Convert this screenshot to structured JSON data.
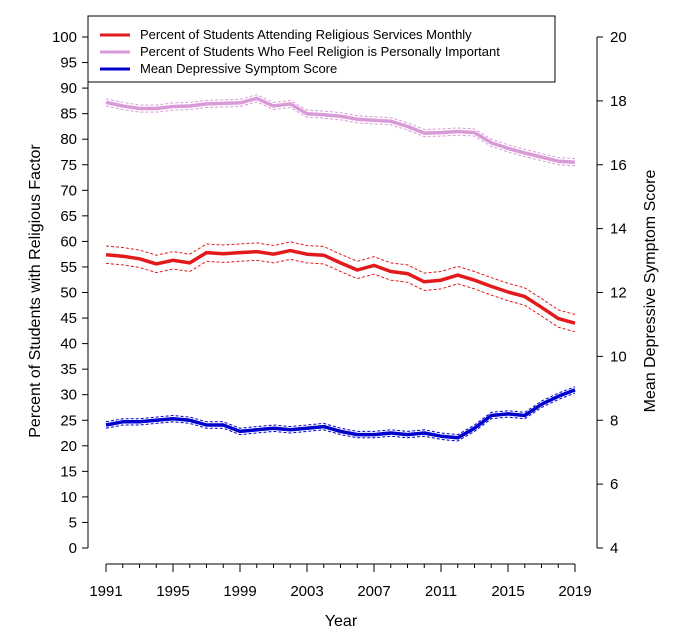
{
  "chart_data": {
    "type": "line",
    "x": [
      1991,
      1992,
      1993,
      1994,
      1995,
      1996,
      1997,
      1998,
      1999,
      2000,
      2001,
      2002,
      2003,
      2004,
      2005,
      2006,
      2007,
      2008,
      2009,
      2010,
      2011,
      2012,
      2013,
      2014,
      2015,
      2016,
      2017,
      2018,
      2019
    ],
    "xlabel": "Year",
    "x_ticks": [
      1991,
      1995,
      1999,
      2003,
      2007,
      2011,
      2015,
      2019
    ],
    "xlim": [
      1991,
      2019
    ],
    "ylabel": "Percent of Students with Religious Factor",
    "ylim": [
      0,
      100
    ],
    "y_ticks": [
      0,
      5,
      10,
      15,
      20,
      25,
      30,
      35,
      40,
      45,
      50,
      55,
      60,
      65,
      70,
      75,
      80,
      85,
      90,
      95,
      100
    ],
    "y2label": "Mean Depressive Symptom Score",
    "y2lim": [
      4,
      20
    ],
    "y2_ticks": [
      4,
      6,
      8,
      10,
      12,
      14,
      16,
      18,
      20
    ],
    "legend_position": "top",
    "grid": false,
    "series": [
      {
        "name": "Percent of Students Attending Religious Services Monthly",
        "axis": "left",
        "color": "#e31a1c",
        "ci_color": "#e31a1c",
        "values": [
          57.4,
          57.1,
          56.6,
          55.6,
          56.3,
          55.8,
          57.8,
          57.6,
          57.8,
          58.0,
          57.5,
          58.2,
          57.5,
          57.3,
          55.8,
          54.4,
          55.3,
          54.1,
          53.7,
          52.1,
          52.4,
          53.4,
          52.4,
          51.2,
          50.1,
          49.2,
          47.1,
          44.9,
          44.0
        ],
        "lower": [
          55.7,
          55.4,
          54.9,
          53.9,
          54.6,
          54.1,
          56.1,
          55.9,
          56.1,
          56.3,
          55.8,
          56.5,
          55.8,
          55.6,
          54.1,
          52.7,
          53.6,
          52.4,
          52.0,
          50.4,
          50.7,
          51.7,
          50.7,
          49.5,
          48.4,
          47.5,
          45.4,
          43.2,
          42.3
        ],
        "upper": [
          59.1,
          58.8,
          58.3,
          57.3,
          58.0,
          57.5,
          59.5,
          59.3,
          59.5,
          59.7,
          59.2,
          59.9,
          59.2,
          59.0,
          57.5,
          56.1,
          57.0,
          55.8,
          55.4,
          53.8,
          54.1,
          55.1,
          54.1,
          52.9,
          51.8,
          50.9,
          48.8,
          46.6,
          45.7
        ]
      },
      {
        "name": "Percent of Students Who Feel Religion is Personally Important",
        "axis": "left",
        "color": "#d99ad8",
        "ci_color": "#d99ad8",
        "values": [
          87.2,
          86.5,
          86.0,
          86.0,
          86.4,
          86.5,
          86.9,
          87.0,
          87.1,
          88.0,
          86.5,
          86.9,
          85.0,
          84.8,
          84.5,
          83.9,
          83.7,
          83.5,
          82.5,
          81.2,
          81.3,
          81.5,
          81.3,
          79.3,
          78.2,
          77.3,
          76.5,
          75.7,
          75.5
        ],
        "lower": [
          86.5,
          85.8,
          85.3,
          85.3,
          85.7,
          85.8,
          86.2,
          86.3,
          86.4,
          87.3,
          85.8,
          86.2,
          84.3,
          84.1,
          83.8,
          83.2,
          83.0,
          82.8,
          81.8,
          80.5,
          80.6,
          80.8,
          80.6,
          78.6,
          77.5,
          76.6,
          75.8,
          75.0,
          74.8
        ],
        "upper": [
          87.9,
          87.2,
          86.7,
          86.7,
          87.1,
          87.2,
          87.6,
          87.7,
          87.8,
          88.7,
          87.2,
          87.6,
          85.7,
          85.5,
          85.2,
          84.6,
          84.4,
          84.2,
          83.2,
          81.9,
          82.0,
          82.2,
          82.0,
          80.0,
          78.9,
          78.0,
          77.2,
          76.4,
          76.2
        ]
      },
      {
        "name": "Mean Depressive Symptom Score",
        "axis": "right",
        "color": "#0000cc",
        "ci_color": "#0000cc",
        "values": [
          7.85,
          7.95,
          7.95,
          8.0,
          8.05,
          8.0,
          7.85,
          7.85,
          7.65,
          7.7,
          7.75,
          7.7,
          7.75,
          7.8,
          7.65,
          7.55,
          7.55,
          7.6,
          7.55,
          7.6,
          7.5,
          7.45,
          7.75,
          8.15,
          8.2,
          8.15,
          8.5,
          8.75,
          8.95
        ],
        "lower": [
          7.75,
          7.85,
          7.85,
          7.9,
          7.95,
          7.9,
          7.75,
          7.75,
          7.55,
          7.6,
          7.65,
          7.6,
          7.65,
          7.7,
          7.55,
          7.45,
          7.45,
          7.5,
          7.45,
          7.5,
          7.4,
          7.35,
          7.65,
          8.05,
          8.1,
          8.05,
          8.4,
          8.65,
          8.85
        ],
        "upper": [
          7.95,
          8.05,
          8.05,
          8.1,
          8.15,
          8.1,
          7.95,
          7.95,
          7.75,
          7.8,
          7.85,
          7.8,
          7.85,
          7.9,
          7.75,
          7.65,
          7.65,
          7.7,
          7.65,
          7.7,
          7.6,
          7.55,
          7.85,
          8.25,
          8.3,
          8.25,
          8.6,
          8.85,
          9.05
        ]
      }
    ]
  }
}
